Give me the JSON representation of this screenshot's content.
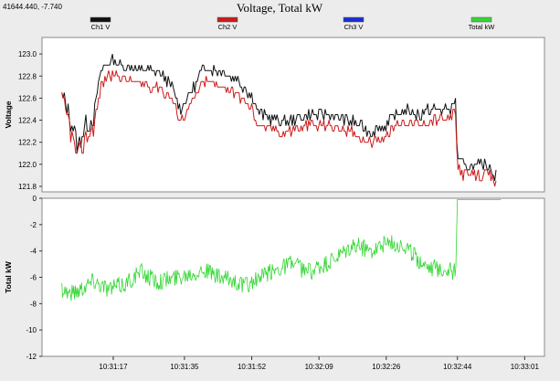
{
  "readout": "41644.440, -7.740",
  "chart_data": {
    "title": "Voltage, Total kW",
    "legend": [
      {
        "name": "Ch1 V",
        "color": "#111111"
      },
      {
        "name": "Ch2 V",
        "color": "#cc1b1b"
      },
      {
        "name": "Ch3 V",
        "color": "#1c2fd6"
      },
      {
        "name": "Total kW",
        "color": "#33d633"
      }
    ],
    "x_ticks": [
      "10:31:17",
      "10:31:35",
      "10:31:52",
      "10:32:09",
      "10:32:26",
      "10:32:44",
      "10:33:01"
    ],
    "x_tick_seconds": [
      77,
      95,
      112,
      129,
      146,
      164,
      181
    ],
    "x_range_seconds": [
      59,
      186
    ],
    "panels": [
      {
        "name": "voltage",
        "type": "line",
        "ylabel": "Voltage",
        "ylim": [
          121.75,
          123.15
        ],
        "y_ticks": [
          121.8,
          122.0,
          122.2,
          122.4,
          122.6,
          122.8,
          123.0
        ],
        "series": [
          {
            "name": "Ch1 V",
            "color": "#111111",
            "keypoints": [
              [
                64,
                122.62
              ],
              [
                66,
                122.45
              ],
              [
                68,
                122.15
              ],
              [
                70,
                122.35
              ],
              [
                72,
                122.45
              ],
              [
                74,
                122.85
              ],
              [
                76,
                122.95
              ],
              [
                80,
                122.9
              ],
              [
                84,
                122.85
              ],
              [
                88,
                122.85
              ],
              [
                92,
                122.7
              ],
              [
                94,
                122.5
              ],
              [
                96,
                122.62
              ],
              [
                100,
                122.88
              ],
              [
                104,
                122.85
              ],
              [
                108,
                122.78
              ],
              [
                110,
                122.7
              ],
              [
                112,
                122.62
              ],
              [
                114,
                122.45
              ],
              [
                120,
                122.38
              ],
              [
                126,
                122.45
              ],
              [
                132,
                122.45
              ],
              [
                138,
                122.38
              ],
              [
                142,
                122.3
              ],
              [
                146,
                122.35
              ],
              [
                150,
                122.5
              ],
              [
                154,
                122.45
              ],
              [
                158,
                122.5
              ],
              [
                162,
                122.5
              ],
              [
                163.5,
                122.58
              ],
              [
                164,
                122.05
              ],
              [
                166,
                121.98
              ],
              [
                172,
                121.98
              ],
              [
                174,
                121.88
              ]
            ]
          },
          {
            "name": "Ch2 V",
            "color": "#cc1b1b",
            "keypoints": [
              [
                64,
                122.55
              ],
              [
                66,
                122.35
              ],
              [
                68,
                122.05
              ],
              [
                70,
                122.25
              ],
              [
                72,
                122.35
              ],
              [
                74,
                122.72
              ],
              [
                76,
                122.82
              ],
              [
                80,
                122.78
              ],
              [
                84,
                122.72
              ],
              [
                88,
                122.72
              ],
              [
                92,
                122.58
              ],
              [
                94,
                122.4
              ],
              [
                96,
                122.5
              ],
              [
                100,
                122.75
              ],
              [
                104,
                122.72
              ],
              [
                108,
                122.65
              ],
              [
                110,
                122.58
              ],
              [
                112,
                122.5
              ],
              [
                114,
                122.35
              ],
              [
                120,
                122.28
              ],
              [
                126,
                122.35
              ],
              [
                132,
                122.35
              ],
              [
                138,
                122.28
              ],
              [
                142,
                122.2
              ],
              [
                146,
                122.25
              ],
              [
                150,
                122.4
              ],
              [
                154,
                122.35
              ],
              [
                158,
                122.4
              ],
              [
                162,
                122.4
              ],
              [
                163.5,
                122.48
              ],
              [
                164,
                121.98
              ],
              [
                166,
                121.9
              ],
              [
                172,
                121.9
              ],
              [
                174,
                121.82
              ]
            ]
          }
        ]
      },
      {
        "name": "power",
        "type": "line",
        "ylabel": "Total kW",
        "ylim": [
          -12,
          0
        ],
        "y_ticks": [
          -12,
          -10,
          -8,
          -6,
          -4,
          -2,
          0
        ],
        "series": [
          {
            "name": "Total kW",
            "color": "#33d633",
            "keypoints": [
              [
                64,
                -6.8
              ],
              [
                66,
                -7.2
              ],
              [
                68,
                -7.0
              ],
              [
                72,
                -6.2
              ],
              [
                76,
                -6.9
              ],
              [
                80,
                -6.5
              ],
              [
                84,
                -5.6
              ],
              [
                88,
                -6.3
              ],
              [
                92,
                -6.1
              ],
              [
                96,
                -5.7
              ],
              [
                100,
                -5.4
              ],
              [
                104,
                -6.1
              ],
              [
                108,
                -6.3
              ],
              [
                110,
                -6.7
              ],
              [
                114,
                -6.1
              ],
              [
                118,
                -5.4
              ],
              [
                122,
                -4.9
              ],
              [
                126,
                -5.6
              ],
              [
                130,
                -5.2
              ],
              [
                134,
                -4.5
              ],
              [
                138,
                -3.6
              ],
              [
                142,
                -3.9
              ],
              [
                146,
                -3.4
              ],
              [
                150,
                -3.5
              ],
              [
                154,
                -4.6
              ],
              [
                158,
                -5.3
              ],
              [
                162,
                -5.4
              ],
              [
                163.5,
                -5.7
              ],
              [
                164,
                -0.1
              ],
              [
                175,
                -0.1
              ]
            ]
          }
        ]
      }
    ]
  }
}
